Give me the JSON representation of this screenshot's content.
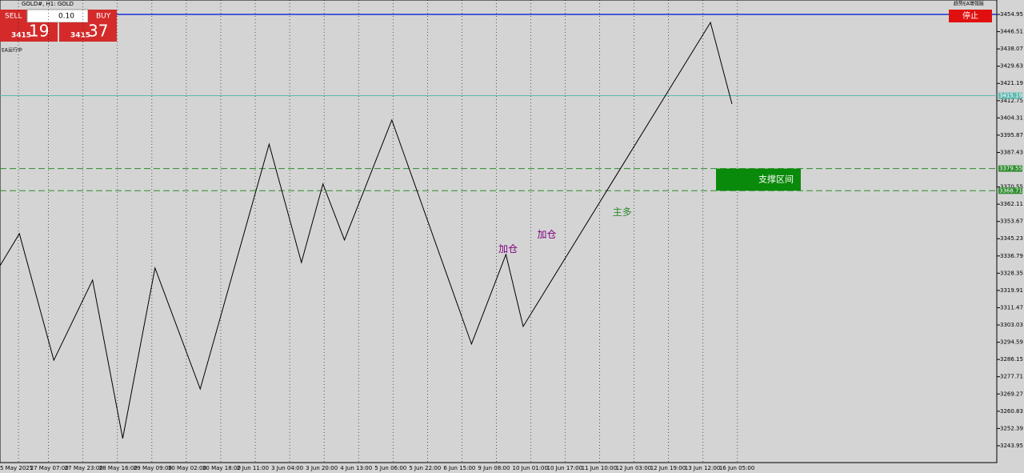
{
  "header": {
    "symbol": "GOLD#, H1: GOLD",
    "status": "EA运行中",
    "ea_name": "趋势EA增强版"
  },
  "trade_panel": {
    "sell": "SELL",
    "buy": "BUY",
    "lot": "0.10",
    "bid_big": "3415",
    "bid_small": "19",
    "ask_big": "3415",
    "ask_small": "37"
  },
  "stop_button": "停止",
  "chart_data": {
    "type": "line",
    "color": "#000000",
    "x": [
      0,
      9,
      25,
      43,
      57,
      72,
      93,
      125,
      140,
      150,
      160,
      182,
      219,
      235,
      243,
      330,
      340
    ],
    "values": [
      3332.0,
      3347.7,
      3285.8,
      3325.0,
      3247.5,
      3330.9,
      3271.7,
      3391.5,
      3333.6,
      3372.0,
      3344.6,
      3403.3,
      3293.7,
      3337.5,
      3302.3,
      3451.0,
      3411.1
    ],
    "xlim": [
      0,
      463
    ],
    "ylim": [
      3235.7,
      3462.0
    ],
    "yticks": [
      3454.95,
      3446.51,
      3438.07,
      3429.63,
      3421.19,
      3412.75,
      3404.31,
      3395.87,
      3387.43,
      3370.55,
      3362.11,
      3353.67,
      3345.23,
      3336.79,
      3328.35,
      3319.91,
      3311.47,
      3303.03,
      3294.59,
      3286.15,
      3277.71,
      3269.27,
      3260.83,
      3252.39,
      3243.95
    ],
    "xticks": [
      {
        "value": 0,
        "label": "5 May 2025"
      },
      {
        "value": 14,
        "label": "27 May 07:00"
      },
      {
        "value": 30,
        "label": "27 May 23:00"
      },
      {
        "value": 46,
        "label": "28 May 16:00"
      },
      {
        "value": 62,
        "label": "29 May 09:00"
      },
      {
        "value": 78,
        "label": "30 May 02:00"
      },
      {
        "value": 94,
        "label": "30 May 18:00"
      },
      {
        "value": 110,
        "label": "2 Jun 11:00"
      },
      {
        "value": 126,
        "label": "3 Jun 04:00"
      },
      {
        "value": 142,
        "label": "3 Jun 20:00"
      },
      {
        "value": 158,
        "label": "4 Jun 13:00"
      },
      {
        "value": 174,
        "label": "5 Jun 06:00"
      },
      {
        "value": 190,
        "label": "5 Jun 22:00"
      },
      {
        "value": 206,
        "label": "6 Jun 15:00"
      },
      {
        "value": 222,
        "label": "9 Jun 08:00"
      },
      {
        "value": 238,
        "label": "10 Jun 01:00"
      },
      {
        "value": 254,
        "label": "10 Jun 17:00"
      },
      {
        "value": 270,
        "label": "11 Jun 10:00"
      },
      {
        "value": 286,
        "label": "12 Jun 03:00"
      },
      {
        "value": 302,
        "label": "12 Jun 19:00"
      },
      {
        "value": 318,
        "label": "13 Jun 12:00"
      },
      {
        "value": 334,
        "label": "16 Jun 05:00"
      }
    ],
    "levels": [
      {
        "value": 3415.19,
        "label": "3415.19",
        "color": "#5fb8b0"
      },
      {
        "value": 3379.55,
        "label": "3379.55",
        "color": "#2e8b2e"
      },
      {
        "value": 3368.71,
        "label": "3368.71",
        "color": "#2e8b2e"
      }
    ],
    "zone_label": "支撑区间",
    "annotations": [
      {
        "text": "加仓",
        "x": 236,
        "y": 3340,
        "color": "#800080"
      },
      {
        "text": "加仓",
        "x": 254,
        "y": 3347,
        "color": "#800080"
      },
      {
        "text": "主多",
        "x": 289,
        "y": 3358,
        "color": "#2e8b2e"
      }
    ]
  }
}
